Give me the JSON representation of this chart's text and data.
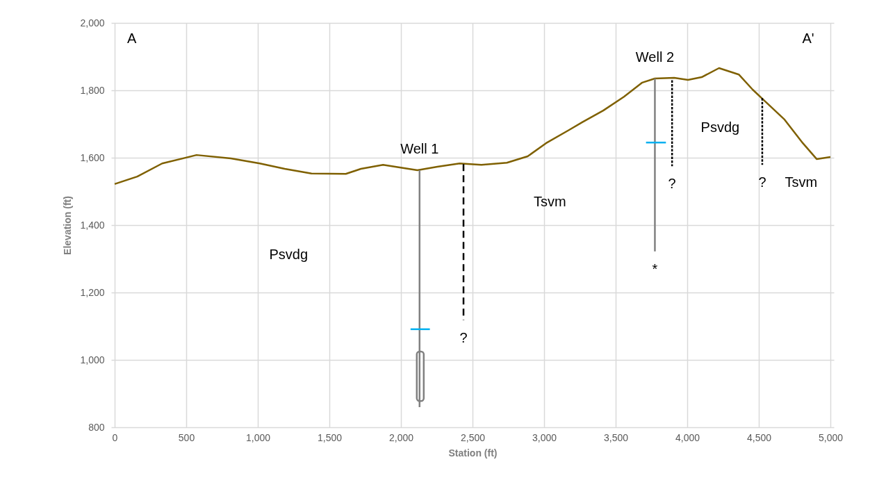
{
  "chart_data": {
    "type": "line",
    "xlabel": "Station (ft)",
    "ylabel": "Elevation (ft)",
    "xlim": [
      0,
      5000
    ],
    "xticks": [
      0,
      500,
      {
        "value": 1000,
        "label": "1,000"
      },
      {
        "value": 1500,
        "label": "1,500"
      },
      {
        "value": 2000,
        "label": "2,000"
      },
      {
        "value": 2500,
        "label": "2,500"
      },
      {
        "value": 3000,
        "label": "3,000"
      },
      {
        "value": 3500,
        "label": "3,500"
      },
      {
        "value": 4000,
        "label": "4,000"
      },
      {
        "value": 4500,
        "label": "4,500"
      },
      {
        "value": 5000,
        "label": "5,000"
      }
    ],
    "ylim": [
      800,
      2000
    ],
    "yticks": [
      800,
      {
        "value": 1000,
        "label": "1,000"
      },
      {
        "value": 1200,
        "label": "1,200"
      },
      {
        "value": 1400,
        "label": "1,400"
      },
      {
        "value": 1600,
        "label": "1,600"
      },
      {
        "value": 1800,
        "label": "1,800"
      },
      {
        "value": 2000,
        "label": "2,000"
      }
    ],
    "grid": true,
    "legend": false,
    "marker": "none",
    "series": [
      {
        "color": "#7f6000",
        "line_style": "solid",
        "x": [
          0,
          158,
          332,
          572,
          812,
          1014,
          1188,
          1375,
          1615,
          1720,
          1875,
          2115,
          2254,
          2410,
          2562,
          2740,
          2885,
          3013,
          3173,
          3269,
          3413,
          3558,
          3686,
          3774,
          3909,
          4005,
          4101,
          4222,
          4360,
          4457,
          4535,
          4680,
          4808,
          4904,
          5000
        ],
        "values": [
          1522,
          1544,
          1583,
          1608,
          1598,
          1583,
          1567,
          1553,
          1552,
          1567,
          1579,
          1563,
          1573,
          1583,
          1579,
          1585,
          1604,
          1643,
          1682,
          1706,
          1740,
          1781,
          1823,
          1835,
          1837,
          1831,
          1839,
          1866,
          1847,
          1802,
          1771,
          1713,
          1643,
          1596,
          1602
        ]
      },
      {
        "color": "#808080",
        "line_style": "solid",
        "x": [
          2130,
          2130
        ],
        "values": [
          1563,
          860
        ]
      },
      {
        "color": "#00b0f0",
        "line_style": "solid",
        "x": [
          2067,
          2202
        ],
        "values": [
          1091,
          1091
        ]
      },
      {
        "color": "#808080",
        "line_style": "solid",
        "x": [
          3774,
          3774
        ],
        "values": [
          1835,
          1322
        ]
      },
      {
        "color": "#00b0f0",
        "line_style": "solid",
        "x": [
          3712,
          3851
        ],
        "values": [
          1645,
          1645
        ]
      },
      {
        "color": "#000000",
        "line_style": "dashed",
        "x": [
          2437,
          2437
        ],
        "values": [
          1581,
          1118
        ]
      },
      {
        "color": "#000000",
        "line_style": "dotted",
        "x": [
          3894,
          3894
        ],
        "values": [
          1830,
          1575
        ]
      },
      {
        "color": "#000000",
        "line_style": "dotted",
        "x": [
          4524,
          4524
        ],
        "values": [
          1777,
          1579
        ]
      },
      {
        "type": "bar",
        "color": "#808080",
        "x": [
          2135
        ],
        "base": [
          878
        ],
        "values": [
          147
        ]
      }
    ],
    "annotations": [
      "A",
      "A'",
      {
        "text": "Well 1",
        "x": 2130,
        "y": 1563
      },
      {
        "text": "Well 2",
        "x": 3774,
        "y": 1835
      },
      "Psvdg",
      "Tsvm",
      "Psvdg",
      "Tsvm",
      {
        "text": "?",
        "x": 2437,
        "y": 1118
      },
      {
        "text": "?",
        "x": 3894,
        "y": 1575
      },
      {
        "text": "?",
        "x": 4524,
        "y": 1579
      },
      {
        "text": "*",
        "x": 3774,
        "y": 1322
      }
    ]
  }
}
